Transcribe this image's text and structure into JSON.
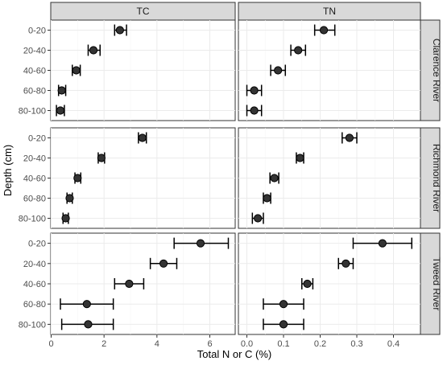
{
  "chart_data": {
    "type": "scatter",
    "xlabel": "Total N or C (%)",
    "ylabel": "Depth (cm)",
    "facet_columns": [
      "TC",
      "TN"
    ],
    "facet_rows": [
      "Clarence River",
      "Richmond River",
      "Tweed River"
    ],
    "depth_categories": [
      "0-20",
      "20-40",
      "40-60",
      "60-80",
      "80-100"
    ],
    "xlim": [
      0,
      7.0
    ],
    "x_ticks": [
      0,
      2,
      4,
      6
    ],
    "x_tick_labels": [
      "0",
      "2",
      "4",
      "6"
    ],
    "xlim_tn": [
      0,
      0.48
    ],
    "x_ticks_tn": [
      0.0,
      0.1,
      0.2,
      0.3,
      0.4
    ],
    "x_tick_labels_tn": [
      "0.0",
      "0.1",
      "0.2",
      "0.3",
      "0.4"
    ],
    "grid": true,
    "panels": [
      {
        "column": "TC",
        "row": "Clarence River",
        "points": [
          {
            "depth": "0-20",
            "value": 2.6,
            "lo": 2.4,
            "hi": 2.85
          },
          {
            "depth": "20-40",
            "value": 1.6,
            "lo": 1.4,
            "hi": 1.85
          },
          {
            "depth": "40-60",
            "value": 0.95,
            "lo": 0.8,
            "hi": 1.1
          },
          {
            "depth": "60-80",
            "value": 0.4,
            "lo": 0.28,
            "hi": 0.55
          },
          {
            "depth": "80-100",
            "value": 0.35,
            "lo": 0.2,
            "hi": 0.5
          }
        ]
      },
      {
        "column": "TN",
        "row": "Clarence River",
        "points": [
          {
            "depth": "0-20",
            "value": 0.21,
            "lo": 0.185,
            "hi": 0.24
          },
          {
            "depth": "20-40",
            "value": 0.14,
            "lo": 0.12,
            "hi": 0.16
          },
          {
            "depth": "40-60",
            "value": 0.085,
            "lo": 0.065,
            "hi": 0.105
          },
          {
            "depth": "60-80",
            "value": 0.02,
            "lo": 0.0,
            "hi": 0.04
          },
          {
            "depth": "80-100",
            "value": 0.02,
            "lo": 0.0,
            "hi": 0.04
          }
        ]
      },
      {
        "column": "TC",
        "row": "Richmond River",
        "points": [
          {
            "depth": "0-20",
            "value": 3.45,
            "lo": 3.3,
            "hi": 3.6
          },
          {
            "depth": "20-40",
            "value": 1.9,
            "lo": 1.78,
            "hi": 2.02
          },
          {
            "depth": "40-60",
            "value": 1.0,
            "lo": 0.9,
            "hi": 1.12
          },
          {
            "depth": "60-80",
            "value": 0.7,
            "lo": 0.6,
            "hi": 0.8
          },
          {
            "depth": "80-100",
            "value": 0.55,
            "lo": 0.45,
            "hi": 0.65
          }
        ]
      },
      {
        "column": "TN",
        "row": "Richmond River",
        "points": [
          {
            "depth": "0-20",
            "value": 0.28,
            "lo": 0.26,
            "hi": 0.3
          },
          {
            "depth": "20-40",
            "value": 0.145,
            "lo": 0.135,
            "hi": 0.155
          },
          {
            "depth": "40-60",
            "value": 0.075,
            "lo": 0.063,
            "hi": 0.087
          },
          {
            "depth": "60-80",
            "value": 0.055,
            "lo": 0.045,
            "hi": 0.065
          },
          {
            "depth": "80-100",
            "value": 0.03,
            "lo": 0.015,
            "hi": 0.045
          }
        ]
      },
      {
        "column": "TC",
        "row": "Tweed River",
        "points": [
          {
            "depth": "0-20",
            "value": 5.65,
            "lo": 4.65,
            "hi": 6.7
          },
          {
            "depth": "20-40",
            "value": 4.25,
            "lo": 3.75,
            "hi": 4.75
          },
          {
            "depth": "40-60",
            "value": 2.95,
            "lo": 2.4,
            "hi": 3.5
          },
          {
            "depth": "60-80",
            "value": 1.35,
            "lo": 0.35,
            "hi": 2.35
          },
          {
            "depth": "80-100",
            "value": 1.4,
            "lo": 0.4,
            "hi": 2.35
          }
        ]
      },
      {
        "column": "TN",
        "row": "Tweed River",
        "points": [
          {
            "depth": "0-20",
            "value": 0.37,
            "lo": 0.29,
            "hi": 0.45
          },
          {
            "depth": "20-40",
            "value": 0.27,
            "lo": 0.25,
            "hi": 0.29
          },
          {
            "depth": "40-60",
            "value": 0.165,
            "lo": 0.15,
            "hi": 0.18
          },
          {
            "depth": "60-80",
            "value": 0.1,
            "lo": 0.045,
            "hi": 0.155
          },
          {
            "depth": "80-100",
            "value": 0.1,
            "lo": 0.045,
            "hi": 0.155
          }
        ]
      }
    ]
  }
}
